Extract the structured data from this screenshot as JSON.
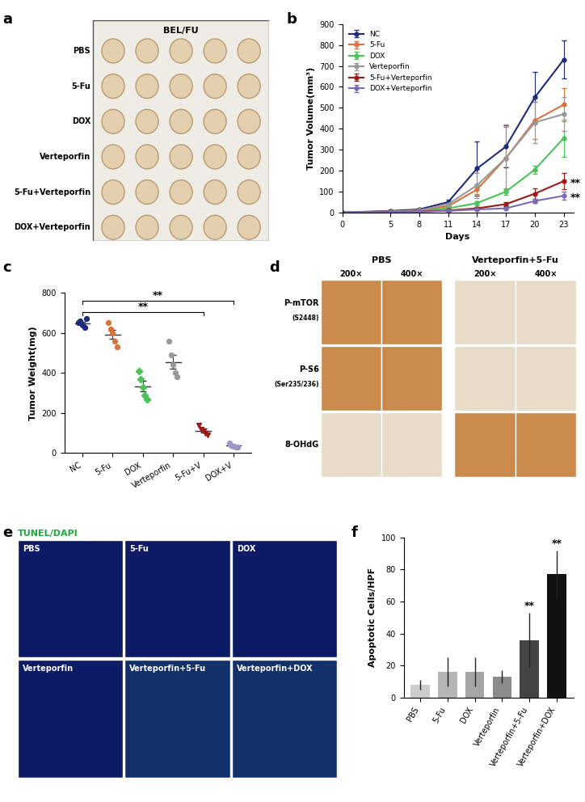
{
  "panel_labels": [
    "a",
    "b",
    "c",
    "d",
    "e",
    "f"
  ],
  "images": {
    "a": {
      "title": "BEL/FU",
      "rows": [
        "PBS",
        "5-Fu",
        "DOX",
        "Verteporfin",
        "5-Fu+Verteporfin",
        "DOX+Verteporfin"
      ]
    },
    "d": {
      "groups": [
        "PBS",
        "Verteporfin+5-Fu"
      ],
      "magnifications": [
        "200×",
        "400×"
      ],
      "rows": [
        {
          "label": "P-mTOR",
          "sublabel": "(S2448)"
        },
        {
          "label": "P-S6",
          "sublabel": "(Ser235/236)"
        },
        {
          "label": "8-OHdG"
        }
      ]
    },
    "e": {
      "title": "TUNEL/DAPI",
      "panels": [
        "PBS",
        "5-Fu",
        "DOX",
        "Verteporfin",
        "Verteporfin+5-Fu",
        "Verteporfin+DOX"
      ]
    }
  },
  "chart_data": [
    {
      "type": "line",
      "xlabel": "Days",
      "ylabel": "Tumor Volume(mm³)",
      "x": [
        0,
        5,
        8,
        11,
        14,
        17,
        20,
        23
      ],
      "xlim": [
        0,
        24
      ],
      "xticks": [
        0,
        5,
        8,
        11,
        14,
        17,
        20,
        23
      ],
      "ylim": [
        0,
        900
      ],
      "yticks": [
        0,
        100,
        200,
        300,
        400,
        500,
        600,
        700,
        800,
        900
      ],
      "legend": "upper left",
      "marker": "o",
      "series": [
        {
          "name": "NC",
          "color": "#1f2a78",
          "values": [
            0,
            8,
            15,
            50,
            210,
            315,
            550,
            730
          ],
          "errors": [
            0,
            3,
            5,
            10,
            130,
            100,
            120,
            90
          ]
        },
        {
          "name": "5-Fu",
          "color": "#d9733a",
          "values": [
            0,
            5,
            10,
            30,
            110,
            260,
            440,
            515
          ],
          "errors": [
            0,
            2,
            3,
            8,
            20,
            150,
            90,
            80
          ]
        },
        {
          "name": "DOX",
          "color": "#4cc25a",
          "values": [
            0,
            3,
            8,
            20,
            45,
            100,
            205,
            355
          ],
          "errors": [
            0,
            2,
            3,
            5,
            10,
            15,
            20,
            90
          ]
        },
        {
          "name": "Verteporfin",
          "color": "#999999",
          "values": [
            0,
            5,
            10,
            40,
            130,
            260,
            430,
            470
          ],
          "errors": [
            0,
            2,
            3,
            10,
            60,
            160,
            100,
            80
          ]
        },
        {
          "name": "5-Fu+Verteporfin",
          "color": "#9b1b1b",
          "values": [
            0,
            2,
            5,
            10,
            20,
            40,
            90,
            150
          ],
          "errors": [
            0,
            1,
            2,
            3,
            5,
            10,
            25,
            40
          ]
        },
        {
          "name": "DOX+Verteporfin",
          "color": "#7b6bb5",
          "values": [
            0,
            2,
            4,
            8,
            15,
            20,
            55,
            80
          ],
          "errors": [
            0,
            1,
            2,
            2,
            3,
            5,
            10,
            20
          ]
        }
      ],
      "annotations": [
        {
          "text": "**",
          "series": "5-Fu+Verteporfin"
        },
        {
          "text": "**",
          "series": "DOX+Verteporfin"
        }
      ]
    },
    {
      "type": "scatter",
      "ylabel": "Tumor Weight(mg)",
      "categories": [
        "NC",
        "5-Fu",
        "DOX",
        "Verteporfin",
        "5-Fu+V",
        "DOX+V"
      ],
      "values": [
        [
          650,
          660,
          640,
          625,
          670
        ],
        [
          650,
          620,
          600,
          560,
          530
        ],
        [
          410,
          370,
          330,
          290,
          270
        ],
        [
          560,
          490,
          440,
          400,
          380
        ],
        [
          140,
          120,
          110,
          100,
          90
        ],
        [
          50,
          40,
          35,
          30,
          30
        ]
      ],
      "means": [
        649,
        592,
        334,
        454,
        112,
        37
      ],
      "errors": [
        8,
        23,
        26,
        34,
        9,
        4
      ],
      "colors": [
        "#1f2a78",
        "#d9733a",
        "#4cc25a",
        "#999999",
        "#9b1b1b",
        "#9e94c8"
      ],
      "ylim": [
        0,
        800
      ],
      "yticks": [
        0,
        200,
        400,
        600,
        800
      ],
      "annotations": [
        {
          "text": "**",
          "from": "NC",
          "to": "5-Fu+V"
        },
        {
          "text": "**",
          "from": "NC",
          "to": "DOX+V"
        }
      ]
    },
    {
      "type": "bar",
      "ylabel": "Apoptotic Cells/HPF",
      "categories": [
        "PBS",
        "5-Fu",
        "DOX",
        "Verteporfin",
        "Verteporfin+5-Fu",
        "Verteporfin+DOX"
      ],
      "values": [
        8,
        16,
        16,
        13,
        36,
        77
      ],
      "errors": [
        3,
        9,
        9,
        4,
        17,
        15
      ],
      "colors": [
        "#cccccc",
        "#b5b5b5",
        "#a5a5a5",
        "#8c8c8c",
        "#444444",
        "#111111"
      ],
      "ylim": [
        0,
        100
      ],
      "yticks": [
        0,
        20,
        40,
        60,
        80,
        100
      ],
      "annotations": [
        {
          "text": "**",
          "category": "Verteporfin+5-Fu"
        },
        {
          "text": "**",
          "category": "Verteporfin+DOX"
        }
      ]
    }
  ]
}
